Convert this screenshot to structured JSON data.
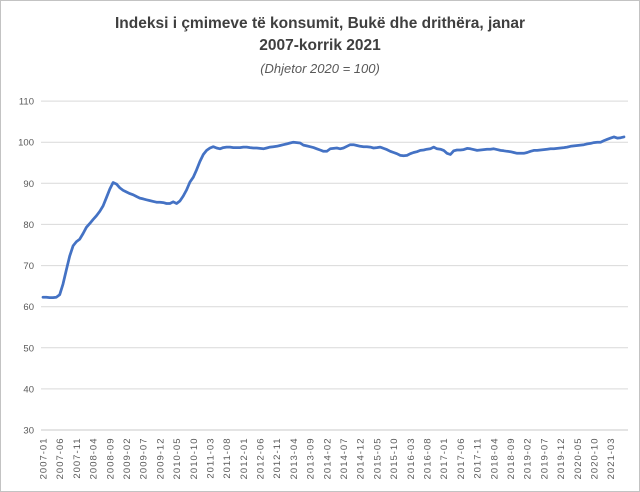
{
  "chart": {
    "title_lines": [
      "Indeksi i çmimeve të konsumit, Bukë dhe drithëra, janar",
      "2007-korrik 2021"
    ],
    "subtitle": "(Dhjetor 2020 = 100)"
  },
  "chart_data": {
    "type": "line",
    "title": "Indeksi i çmimeve të konsumit, Bukë dhe drithëra, janar 2007-korrik 2021",
    "subtitle": "(Dhjetor 2020 = 100)",
    "series_name": "Indeksi i çmimeve të konsumit, Bukë dhe drithëra",
    "x_start": "2007-01",
    "x_end": "2021-07",
    "x_frequency": "monthly",
    "x_tick_interval": 5,
    "x_tick_labels": [
      "2007-01",
      "2007-06",
      "2007-11",
      "2008-04",
      "2008-09",
      "2009-02",
      "2009-07",
      "2009-12",
      "2010-05",
      "2010-10",
      "2011-03",
      "2011-08",
      "2012-01",
      "2012-06",
      "2012-11",
      "2013-04",
      "2013-09",
      "2014-02",
      "2014-07",
      "2014-12",
      "2015-05",
      "2015-10",
      "2016-03",
      "2016-08",
      "2017-01",
      "2017-06",
      "2017-11",
      "2018-04",
      "2018-09",
      "2019-02",
      "2019-07",
      "2019-12",
      "2020-05",
      "2020-10",
      "2021-03"
    ],
    "ylim": [
      30,
      110
    ],
    "ytick_step": 10,
    "grid": "horizontal",
    "legend": "none",
    "colors": {
      "line": "#4472C4",
      "gridline": "#D9D9D9",
      "axis_line": "#C8C8C8",
      "axis_text": "#595959",
      "title_text": "#3F3F3F"
    },
    "values": [
      62.3,
      62.3,
      62.2,
      62.2,
      62.3,
      62.9,
      65.5,
      69.0,
      72.3,
      74.8,
      75.8,
      76.4,
      77.8,
      79.3,
      80.2,
      81.2,
      82.1,
      83.2,
      84.5,
      86.5,
      88.6,
      90.2,
      89.8,
      88.9,
      88.3,
      87.9,
      87.5,
      87.2,
      86.8,
      86.4,
      86.2,
      86.0,
      85.8,
      85.6,
      85.4,
      85.4,
      85.3,
      85.1,
      85.1,
      85.5,
      85.1,
      85.7,
      86.9,
      88.4,
      90.3,
      91.5,
      93.3,
      95.3,
      97.0,
      98.0,
      98.6,
      98.9,
      98.6,
      98.4,
      98.7,
      98.8,
      98.8,
      98.7,
      98.7,
      98.7,
      98.8,
      98.8,
      98.7,
      98.6,
      98.6,
      98.5,
      98.4,
      98.6,
      98.8,
      98.9,
      99.0,
      99.2,
      99.4,
      99.6,
      99.8,
      100.0,
      99.9,
      99.8,
      99.3,
      99.1,
      98.9,
      98.7,
      98.4,
      98.1,
      97.8,
      97.8,
      98.4,
      98.5,
      98.6,
      98.4,
      98.6,
      99.0,
      99.4,
      99.4,
      99.2,
      99.0,
      98.9,
      98.9,
      98.8,
      98.6,
      98.7,
      98.8,
      98.5,
      98.2,
      97.8,
      97.5,
      97.2,
      96.8,
      96.7,
      96.8,
      97.2,
      97.5,
      97.7,
      98.0,
      98.1,
      98.3,
      98.4,
      98.8,
      98.4,
      98.3,
      98.0,
      97.3,
      97.0,
      97.9,
      98.1,
      98.1,
      98.2,
      98.5,
      98.4,
      98.2,
      98.0,
      98.1,
      98.2,
      98.3,
      98.3,
      98.4,
      98.2,
      98.0,
      97.9,
      97.8,
      97.7,
      97.5,
      97.3,
      97.3,
      97.3,
      97.5,
      97.8,
      98.0,
      98.0,
      98.1,
      98.2,
      98.3,
      98.4,
      98.4,
      98.5,
      98.6,
      98.7,
      98.8,
      99.0,
      99.1,
      99.2,
      99.3,
      99.4,
      99.6,
      99.7,
      99.9,
      100.0,
      100.0,
      100.4,
      100.7,
      101.0,
      101.3,
      101.0,
      101.1,
      101.3
    ]
  }
}
